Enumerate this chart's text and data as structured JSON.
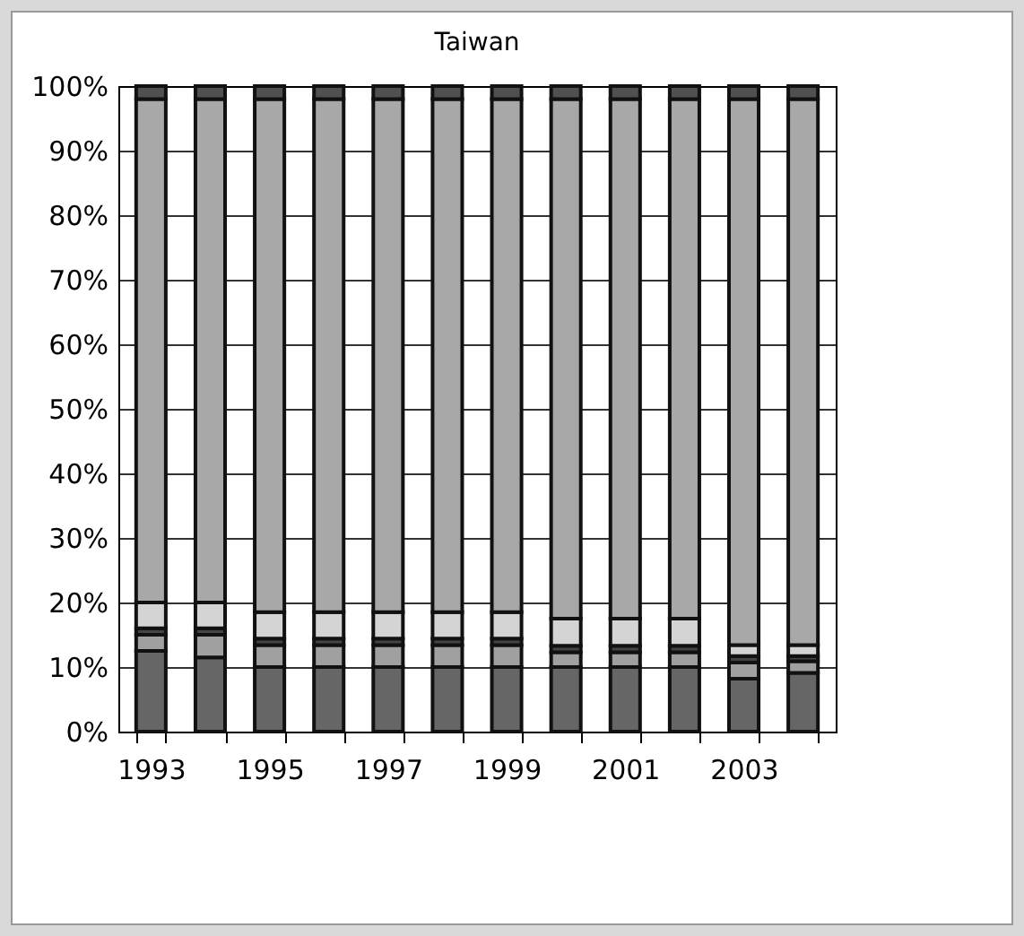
{
  "chart_data": {
    "type": "bar",
    "title": "Taiwan",
    "stacked": true,
    "grid": "y",
    "legend": false,
    "categories": [
      "1993",
      null,
      "1995",
      null,
      "1997",
      null,
      "1999",
      null,
      "2001",
      null,
      "2003",
      null
    ],
    "ylim": [
      0,
      100
    ],
    "yticks": [
      {
        "value": 0,
        "label": "0%"
      },
      {
        "value": 10,
        "label": "10%"
      },
      {
        "value": 20,
        "label": "20%"
      },
      {
        "value": 30,
        "label": "30%"
      },
      {
        "value": 40,
        "label": "40%"
      },
      {
        "value": 50,
        "label": "50%"
      },
      {
        "value": 60,
        "label": "60%"
      },
      {
        "value": 70,
        "label": "70%"
      },
      {
        "value": 80,
        "label": "80%"
      },
      {
        "value": 90,
        "label": "90%"
      },
      {
        "value": 100,
        "label": "100%"
      }
    ],
    "series": [
      {
        "color": "#666666",
        "values": [
          12.5,
          11.5,
          10,
          10,
          10,
          10,
          10,
          10,
          10,
          10,
          8.2,
          9.1
        ]
      },
      {
        "color": "#a0a0a0",
        "values": [
          2.5,
          3.5,
          3.4,
          3.4,
          3.4,
          3.4,
          3.4,
          2.3,
          2.3,
          2.3,
          2.5,
          1.8
        ]
      },
      {
        "color": "#444444",
        "values": [
          1,
          1,
          1,
          1,
          1,
          1,
          1,
          1,
          1,
          1,
          1,
          0.8
        ]
      },
      {
        "color": "#d4d4d4",
        "values": [
          4,
          4,
          4.1,
          4.1,
          4.1,
          4.1,
          4.1,
          4.2,
          4.2,
          4.2,
          1.7,
          1.7
        ]
      },
      {
        "color": "#a8a8a8",
        "values": [
          78,
          78,
          79.5,
          79.5,
          79.5,
          79.5,
          79.5,
          80.5,
          80.5,
          80.5,
          84.6,
          84.6
        ]
      },
      {
        "color": "#505050",
        "values": [
          2,
          2,
          2,
          2,
          2,
          2,
          2,
          2,
          2,
          2,
          2,
          2
        ]
      }
    ]
  }
}
